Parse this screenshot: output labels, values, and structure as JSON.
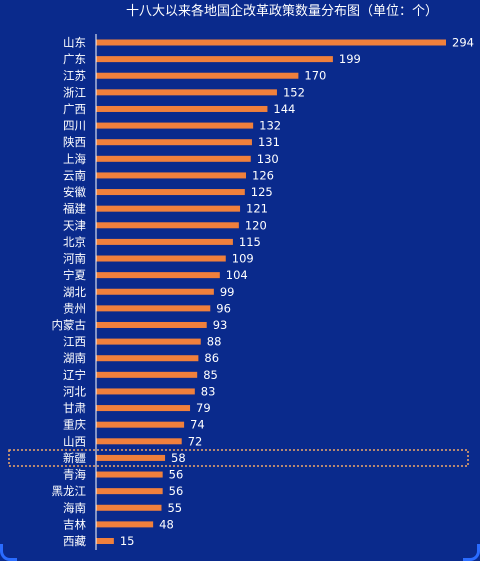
{
  "colors": {
    "background": "#0a2a8c",
    "bar": "#f0803c",
    "axis": "#ffffff",
    "text": "#ffffff",
    "highlight": "#f0a868"
  },
  "chart_data": {
    "type": "bar",
    "orientation": "horizontal",
    "title": "十八大以来各地国企改革政策数量分布图（单位：个）",
    "categories": [
      "山东",
      "广东",
      "江苏",
      "浙江",
      "广西",
      "四川",
      "陕西",
      "上海",
      "云南",
      "安徽",
      "福建",
      "天津",
      "北京",
      "河南",
      "宁夏",
      "湖北",
      "贵州",
      "内蒙古",
      "江西",
      "湖南",
      "辽宁",
      "河北",
      "甘肃",
      "重庆",
      "山西",
      "新疆",
      "青海",
      "黑龙江",
      "海南",
      "吉林",
      "西藏"
    ],
    "values": [
      294,
      199,
      170,
      152,
      144,
      132,
      131,
      130,
      126,
      125,
      121,
      120,
      115,
      109,
      104,
      99,
      96,
      93,
      88,
      86,
      85,
      83,
      79,
      74,
      72,
      58,
      56,
      56,
      55,
      48,
      15
    ],
    "xlim": [
      0,
      294
    ],
    "grid": false,
    "legend": "none",
    "highlighted_category": "新疆"
  }
}
